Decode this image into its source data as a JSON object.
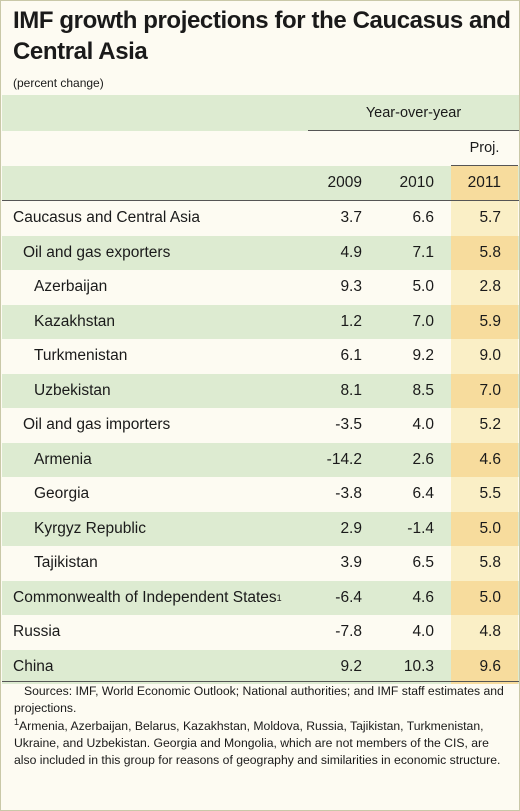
{
  "title": "IMF growth projections for the Caucasus and Central Asia",
  "subtitle": "(percent change)",
  "colors": {
    "background": "#fdfbf2",
    "row_band": "#ddebd1",
    "projection_band": "#f7dc9d",
    "projection_light": "#faefc6"
  },
  "header": {
    "group_label": "Year-over-year",
    "proj_label": "Proj.",
    "years": [
      "2009",
      "2010",
      "2011"
    ]
  },
  "chart_data": {
    "type": "table",
    "columns": [
      "2009",
      "2010",
      "2011"
    ],
    "rows": [
      {
        "label": "Caucasus and Central Asia",
        "indent": 0,
        "v2009": "3.7",
        "v2010": "6.6",
        "v2011": "5.7"
      },
      {
        "label": "Oil and gas exporters",
        "indent": 1,
        "v2009": "4.9",
        "v2010": "7.1",
        "v2011": "5.8"
      },
      {
        "label": "Azerbaijan",
        "indent": 2,
        "v2009": "9.3",
        "v2010": "5.0",
        "v2011": "2.8"
      },
      {
        "label": "Kazakhstan",
        "indent": 2,
        "v2009": "1.2",
        "v2010": "7.0",
        "v2011": "5.9"
      },
      {
        "label": "Turkmenistan",
        "indent": 2,
        "v2009": "6.1",
        "v2010": "9.2",
        "v2011": "9.0"
      },
      {
        "label": "Uzbekistan",
        "indent": 2,
        "v2009": "8.1",
        "v2010": "8.5",
        "v2011": "7.0"
      },
      {
        "label": "Oil and gas importers",
        "indent": 1,
        "v2009": "-3.5",
        "v2010": "4.0",
        "v2011": "5.2"
      },
      {
        "label": "Armenia",
        "indent": 2,
        "v2009": "-14.2",
        "v2010": "2.6",
        "v2011": "4.6"
      },
      {
        "label": "Georgia",
        "indent": 2,
        "v2009": "-3.8",
        "v2010": "6.4",
        "v2011": "5.5"
      },
      {
        "label": "Kyrgyz Republic",
        "indent": 2,
        "v2009": "2.9",
        "v2010": "-1.4",
        "v2011": "5.0"
      },
      {
        "label": "Tajikistan",
        "indent": 2,
        "v2009": "3.9",
        "v2010": "6.5",
        "v2011": "5.8"
      },
      {
        "label": "Commonwealth of Independent States",
        "sup": "1",
        "indent": 0,
        "v2009": "-6.4",
        "v2010": "4.6",
        "v2011": "5.0"
      },
      {
        "label": "Russia",
        "indent": 0,
        "v2009": "-7.8",
        "v2010": "4.0",
        "v2011": "4.8"
      },
      {
        "label": "China",
        "indent": 0,
        "v2009": "9.2",
        "v2010": "10.3",
        "v2011": "9.6"
      }
    ]
  },
  "notes": {
    "sources": "Sources: IMF, World Economic Outlook; National authorities; and IMF staff estimates and projections.",
    "footnote_mark": "1",
    "footnote": "Armenia, Azerbaijan, Belarus, Kazakhstan, Moldova, Russia, Tajikistan, Turkmenistan, Ukraine, and Uzbekistan. Georgia and Mongolia, which are not members of the CIS, are also included in this group for reasons of geography and similarities in economic structure."
  }
}
